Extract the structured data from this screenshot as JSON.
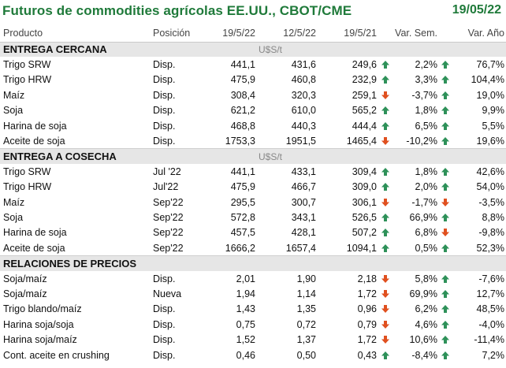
{
  "title": "Futuros de commodities agrícolas EE.UU., CBOT/CME",
  "date": "19/05/22",
  "columns": {
    "product": "Producto",
    "position": "Posición",
    "c1": "19/5/22",
    "c2": "12/5/22",
    "c3": "19/5/21",
    "week": "Var. Sem.",
    "year": "Var. Año"
  },
  "sections": [
    {
      "name": "ENTREGA CERCANA",
      "unit": "U$S/t",
      "rows": [
        {
          "product": "Trigo SRW",
          "position": "Disp.",
          "c1": "441,1",
          "c2": "431,6",
          "c3": "249,6",
          "week": "2,2%",
          "year": "76,7%",
          "week_icon": "up-arrow-icon",
          "year_icon": "up-arrow-icon"
        },
        {
          "product": "Trigo HRW",
          "position": "Disp.",
          "c1": "475,9",
          "c2": "460,8",
          "c3": "232,9",
          "week": "3,3%",
          "year": "104,4%",
          "week_icon": "up-arrow-icon",
          "year_icon": "up-arrow-icon"
        },
        {
          "product": "Maíz",
          "position": "Disp.",
          "c1": "308,4",
          "c2": "320,3",
          "c3": "259,1",
          "week": "-3,7%",
          "year": "19,0%",
          "week_icon": "down-arrow-icon",
          "year_icon": "up-arrow-icon"
        },
        {
          "product": "Soja",
          "position": "Disp.",
          "c1": "621,2",
          "c2": "610,0",
          "c3": "565,2",
          "week": "1,8%",
          "year": "9,9%",
          "week_icon": "up-arrow-icon",
          "year_icon": "up-arrow-icon"
        },
        {
          "product": "Harina de soja",
          "position": "Disp.",
          "c1": "468,8",
          "c2": "440,3",
          "c3": "444,4",
          "week": "6,5%",
          "year": "5,5%",
          "week_icon": "up-arrow-icon",
          "year_icon": "up-arrow-icon"
        },
        {
          "product": "Aceite de soja",
          "position": "Disp.",
          "c1": "1753,3",
          "c2": "1951,5",
          "c3": "1465,4",
          "week": "-10,2%",
          "year": "19,6%",
          "week_icon": "down-arrow-icon",
          "year_icon": "up-arrow-icon"
        }
      ]
    },
    {
      "name": "ENTREGA A COSECHA",
      "unit": "U$S/t",
      "rows": [
        {
          "product": "Trigo SRW",
          "position": "Jul '22",
          "c1": "441,1",
          "c2": "433,1",
          "c3": "309,4",
          "week": "1,8%",
          "year": "42,6%",
          "week_icon": "up-arrow-icon",
          "year_icon": "up-arrow-icon"
        },
        {
          "product": "Trigo HRW",
          "position": "Jul'22",
          "c1": "475,9",
          "c2": "466,7",
          "c3": "309,0",
          "week": "2,0%",
          "year": "54,0%",
          "week_icon": "up-arrow-icon",
          "year_icon": "up-arrow-icon"
        },
        {
          "product": "Maíz",
          "position": "Sep'22",
          "c1": "295,5",
          "c2": "300,7",
          "c3": "306,1",
          "week": "-1,7%",
          "year": "-3,5%",
          "week_icon": "down-arrow-icon",
          "year_icon": "down-arrow-icon"
        },
        {
          "product": "Soja",
          "position": "Sep'22",
          "c1": "572,8",
          "c2": "343,1",
          "c3": "526,5",
          "week": "66,9%",
          "year": "8,8%",
          "week_icon": "up-arrow-icon",
          "year_icon": "up-arrow-icon"
        },
        {
          "product": "Harina de soja",
          "position": "Sep'22",
          "c1": "457,5",
          "c2": "428,1",
          "c3": "507,2",
          "week": "6,8%",
          "year": "-9,8%",
          "week_icon": "up-arrow-icon",
          "year_icon": "down-arrow-icon"
        },
        {
          "product": "Aceite de soja",
          "position": "Sep'22",
          "c1": "1666,2",
          "c2": "1657,4",
          "c3": "1094,1",
          "week": "0,5%",
          "year": "52,3%",
          "week_icon": "up-arrow-icon",
          "year_icon": "up-arrow-icon"
        }
      ]
    },
    {
      "name": "RELACIONES DE PRECIOS",
      "unit": "",
      "rows": [
        {
          "product": "Soja/maíz",
          "position": "Disp.",
          "c1": "2,01",
          "c2": "1,90",
          "c3": "2,18",
          "week": "5,8%",
          "year": "-7,6%",
          "week_icon": "down-arrow-icon",
          "year_icon": "up-arrow-icon"
        },
        {
          "product": "Soja/maíz",
          "position": "Nueva",
          "c1": "1,94",
          "c2": "1,14",
          "c3": "1,72",
          "week": "69,9%",
          "year": "12,7%",
          "week_icon": "down-arrow-icon",
          "year_icon": "up-arrow-icon"
        },
        {
          "product": "Trigo blando/maíz",
          "position": "Disp.",
          "c1": "1,43",
          "c2": "1,35",
          "c3": "0,96",
          "week": "6,2%",
          "year": "48,5%",
          "week_icon": "down-arrow-icon",
          "year_icon": "up-arrow-icon"
        },
        {
          "product": "Harina soja/soja",
          "position": "Disp.",
          "c1": "0,75",
          "c2": "0,72",
          "c3": "0,79",
          "week": "4,6%",
          "year": "-4,0%",
          "week_icon": "down-arrow-icon",
          "year_icon": "up-arrow-icon"
        },
        {
          "product": "Harina soja/maíz",
          "position": "Disp.",
          "c1": "1,52",
          "c2": "1,37",
          "c3": "1,72",
          "week": "10,6%",
          "year": "-11,4%",
          "week_icon": "down-arrow-icon",
          "year_icon": "up-arrow-icon"
        },
        {
          "product": "Cont. aceite en crushing",
          "position": "Disp.",
          "c1": "0,46",
          "c2": "0,50",
          "c3": "0,43",
          "week": "-8,4%",
          "year": "7,2%",
          "week_icon": "up-arrow-icon",
          "year_icon": "up-arrow-icon"
        }
      ]
    }
  ],
  "colors": {
    "title": "#1f7a3a",
    "up": "#2e9159",
    "down": "#e0501f",
    "section_bg": "#e6e6e6"
  }
}
